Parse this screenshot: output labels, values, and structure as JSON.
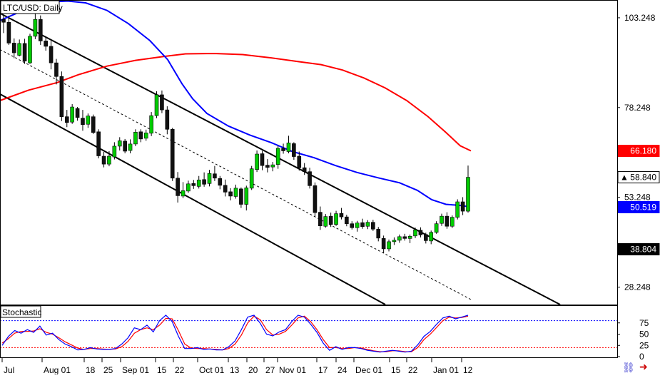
{
  "chart_data": {
    "type": "candlestick",
    "title": "LTC/USD: Daily",
    "price_axis": {
      "ylim": [
        23.4,
        108.2
      ],
      "tick_labels": [
        "103.248",
        "78.248",
        "53.248",
        "28.248"
      ],
      "tick_values": [
        103.248,
        78.248,
        53.248,
        28.248
      ]
    },
    "price_tags": [
      {
        "label": "66.180",
        "value": 66.18,
        "bg": "#ff0000",
        "fg": "#ffffff"
      },
      {
        "label": "58.840",
        "value": 58.84,
        "bg": "#ffffff",
        "fg": "#000000",
        "marker": "▲"
      },
      {
        "label": "50.519",
        "value": 50.519,
        "bg": "#0000ff",
        "fg": "#ffffff"
      },
      {
        "label": "38.804",
        "value": 38.804,
        "bg": "#000000",
        "fg": "#ffffff"
      }
    ],
    "date_labels": [
      "Jul",
      "Aug 01",
      "18",
      "25",
      "Sep 01",
      "15",
      "22",
      "Oct 01",
      "13",
      "20",
      "27",
      "Nov 01",
      "17",
      "24",
      "Dec 01",
      "15",
      "22",
      "Jan 01",
      "12"
    ],
    "ma_fast": {
      "color": "#0000ff",
      "points": [
        [
          0,
          102.5
        ],
        [
          20,
          104.2
        ],
        [
          45,
          106.4
        ],
        [
          75,
          107.7
        ],
        [
          95,
          107.9
        ],
        [
          120,
          107.4
        ],
        [
          150,
          105.3
        ],
        [
          180,
          101.6
        ],
        [
          210,
          96.9
        ],
        [
          235,
          91.6
        ],
        [
          255,
          84.9
        ],
        [
          270,
          80.7
        ],
        [
          290,
          76.6
        ],
        [
          320,
          73.1
        ],
        [
          350,
          70.6
        ],
        [
          380,
          68.5
        ],
        [
          410,
          66.0
        ],
        [
          440,
          64.3
        ],
        [
          470,
          62.1
        ],
        [
          500,
          60.2
        ],
        [
          530,
          58.7
        ],
        [
          560,
          57.3
        ],
        [
          585,
          55.2
        ],
        [
          605,
          52.6
        ],
        [
          625,
          51.3
        ],
        [
          645,
          51.0
        ],
        [
          658,
          50.6
        ]
      ]
    },
    "ma_slow": {
      "color": "#ff0000",
      "points": [
        [
          0,
          80.2
        ],
        [
          40,
          83.1
        ],
        [
          80,
          85.2
        ],
        [
          110,
          87.4
        ],
        [
          150,
          89.8
        ],
        [
          190,
          91.4
        ],
        [
          230,
          92.5
        ],
        [
          260,
          93.2
        ],
        [
          300,
          93.3
        ],
        [
          340,
          93.0
        ],
        [
          380,
          92.1
        ],
        [
          420,
          91.0
        ],
        [
          450,
          90.2
        ],
        [
          480,
          88.7
        ],
        [
          510,
          86.5
        ],
        [
          540,
          83.7
        ],
        [
          570,
          80.2
        ],
        [
          600,
          75.7
        ],
        [
          625,
          71.3
        ],
        [
          645,
          67.6
        ],
        [
          660,
          66.2
        ]
      ]
    },
    "channel_lines": [
      {
        "style": "solid",
        "p1": [
          0,
          104.5
        ],
        "p2": [
          785,
          23.4
        ]
      },
      {
        "style": "solid",
        "p1": [
          0,
          82.0
        ],
        "p2": [
          540,
          23.4
        ]
      },
      {
        "style": "dashed",
        "p1": [
          0,
          94.4
        ],
        "p2": [
          660,
          24.8
        ]
      }
    ],
    "candles": [
      [
        102.8,
        104.0,
        99.0,
        102.0
      ],
      [
        102.0,
        103.8,
        95.7,
        96.2
      ],
      [
        96.2,
        97.5,
        92.0,
        93.5
      ],
      [
        92.8,
        97.2,
        92.5,
        96.1
      ],
      [
        96.1,
        97.4,
        90.4,
        91.2
      ],
      [
        90.7,
        98.8,
        90.4,
        98.1
      ],
      [
        98.1,
        107.2,
        97.3,
        102.8
      ],
      [
        102.8,
        103.9,
        95.7,
        96.8
      ],
      [
        96.8,
        98.1,
        94.1,
        95.3
      ],
      [
        95.3,
        96.8,
        88.9,
        90.7
      ],
      [
        90.7,
        91.8,
        84.7,
        86.9
      ],
      [
        86.9,
        88.3,
        74.5,
        75.7
      ],
      [
        75.7,
        77.6,
        72.8,
        74.1
      ],
      [
        74.2,
        79.2,
        73.7,
        78.4
      ],
      [
        78.0,
        78.4,
        74.6,
        75.5
      ],
      [
        75.3,
        77.6,
        71.8,
        73.5
      ],
      [
        73.6,
        76.6,
        72.6,
        75.9
      ],
      [
        75.7,
        76.3,
        70.9,
        71.3
      ],
      [
        71.5,
        72.2,
        64.1,
        64.8
      ],
      [
        64.7,
        65.9,
        61.6,
        62.5
      ],
      [
        62.5,
        66.1,
        61.9,
        64.7
      ],
      [
        64.5,
        68.6,
        63.8,
        67.5
      ],
      [
        67.5,
        70.0,
        66.3,
        69.0
      ],
      [
        68.9,
        69.5,
        65.5,
        66.1
      ],
      [
        66.3,
        69.4,
        65.5,
        68.1
      ],
      [
        68.1,
        72.2,
        67.5,
        71.4
      ],
      [
        71.5,
        72.2,
        68.6,
        69.5
      ],
      [
        69.7,
        72.1,
        69.0,
        71.2
      ],
      [
        71.1,
        77.0,
        70.3,
        76.0
      ],
      [
        76.0,
        82.8,
        75.3,
        81.8
      ],
      [
        81.8,
        83.0,
        76.7,
        77.6
      ],
      [
        77.6,
        78.6,
        70.8,
        72.2
      ],
      [
        72.2,
        72.6,
        57.8,
        58.6
      ],
      [
        58.6,
        60.3,
        51.8,
        53.7
      ],
      [
        53.6,
        57.5,
        53.0,
        55.1
      ],
      [
        55.0,
        57.9,
        54.5,
        57.0
      ],
      [
        57.1,
        58.1,
        55.6,
        56.5
      ],
      [
        56.3,
        59.2,
        55.7,
        58.1
      ],
      [
        58.2,
        60.2,
        56.2,
        56.9
      ],
      [
        57.1,
        60.9,
        56.3,
        59.9
      ],
      [
        59.8,
        62.0,
        57.8,
        58.6
      ],
      [
        58.5,
        59.2,
        55.5,
        56.6
      ],
      [
        56.6,
        58.2,
        53.5,
        54.7
      ],
      [
        54.8,
        55.8,
        52.4,
        53.6
      ],
      [
        53.5,
        56.8,
        52.9,
        55.8
      ],
      [
        55.6,
        56.0,
        50.3,
        51.3
      ],
      [
        51.3,
        56.5,
        49.6,
        55.9
      ],
      [
        55.8,
        62.0,
        55.3,
        61.2
      ],
      [
        61.0,
        66.3,
        60.3,
        65.3
      ],
      [
        65.4,
        66.2,
        60.8,
        62.1
      ],
      [
        62.2,
        63.9,
        60.2,
        61.6
      ],
      [
        61.7,
        63.1,
        60.5,
        62.3
      ],
      [
        62.4,
        67.7,
        61.2,
        66.9
      ],
      [
        66.9,
        68.2,
        65.4,
        66.2
      ],
      [
        66.0,
        70.4,
        65.5,
        68.4
      ],
      [
        68.2,
        68.6,
        63.7,
        64.6
      ],
      [
        64.7,
        66.0,
        60.7,
        61.5
      ],
      [
        61.5,
        62.8,
        59.5,
        60.4
      ],
      [
        60.4,
        61.5,
        55.7,
        56.5
      ],
      [
        56.5,
        57.4,
        47.9,
        49.0
      ],
      [
        49.1,
        50.7,
        44.2,
        45.3
      ],
      [
        45.2,
        48.6,
        44.8,
        47.9
      ],
      [
        48.0,
        49.0,
        45.0,
        45.7
      ],
      [
        45.7,
        49.5,
        45.3,
        48.7
      ],
      [
        48.8,
        50.3,
        47.1,
        47.8
      ],
      [
        47.8,
        48.4,
        45.2,
        45.9
      ],
      [
        45.9,
        46.6,
        44.3,
        44.8
      ],
      [
        44.8,
        46.7,
        43.7,
        46.1
      ],
      [
        46.2,
        47.3,
        44.5,
        45.1
      ],
      [
        45.2,
        46.9,
        44.4,
        46.3
      ],
      [
        46.3,
        47.0,
        43.9,
        44.4
      ],
      [
        44.4,
        45.0,
        41.0,
        41.9
      ],
      [
        41.8,
        42.6,
        37.7,
        38.9
      ],
      [
        38.9,
        41.5,
        38.2,
        40.9
      ],
      [
        40.9,
        42.1,
        40.0,
        41.3
      ],
      [
        41.3,
        42.9,
        40.6,
        42.3
      ],
      [
        42.3,
        43.1,
        41.2,
        41.8
      ],
      [
        41.8,
        42.9,
        40.5,
        42.4
      ],
      [
        42.5,
        44.8,
        41.9,
        44.2
      ],
      [
        44.1,
        44.9,
        42.1,
        42.8
      ],
      [
        42.9,
        43.4,
        40.4,
        41.2
      ],
      [
        41.1,
        44.0,
        40.2,
        43.5
      ],
      [
        43.5,
        46.6,
        43.1,
        45.9
      ],
      [
        46.0,
        48.7,
        45.3,
        48.0
      ],
      [
        48.0,
        49.1,
        44.5,
        45.2
      ],
      [
        45.2,
        48.2,
        44.7,
        47.7
      ],
      [
        47.7,
        52.7,
        47.1,
        52.0
      ],
      [
        52.0,
        53.3,
        48.3,
        49.4
      ],
      [
        49.4,
        62.1,
        49.0,
        58.84
      ]
    ],
    "stochastic": {
      "label": "Stochastic",
      "ylim": [
        0,
        100
      ],
      "tick_labels": [
        "75",
        "50",
        "25",
        "0"
      ],
      "tick_values": [
        75,
        50,
        25,
        0
      ],
      "levels": [
        80,
        20
      ],
      "k_color": "#0000ff",
      "d_color": "#ff0000",
      "k": [
        25,
        45,
        58,
        52,
        60,
        54,
        68,
        48,
        52,
        38,
        28,
        22,
        15,
        16,
        20,
        17,
        16,
        16,
        18,
        28,
        42,
        64,
        60,
        70,
        55,
        80,
        92,
        78,
        45,
        18,
        18,
        20,
        16,
        17,
        15,
        15,
        22,
        35,
        60,
        88,
        92,
        74,
        50,
        46,
        55,
        60,
        78,
        92,
        88,
        72,
        54,
        30,
        14,
        22,
        16,
        20,
        20,
        18,
        14,
        12,
        10,
        12,
        14,
        12,
        10,
        12,
        26,
        45,
        56,
        72,
        86,
        90,
        84,
        88,
        92
      ],
      "d": [
        30,
        40,
        52,
        56,
        56,
        57,
        62,
        54,
        50,
        42,
        33,
        26,
        19,
        16,
        18,
        18,
        17,
        16,
        17,
        22,
        34,
        52,
        60,
        64,
        60,
        70,
        85,
        84,
        58,
        28,
        19,
        18,
        18,
        17,
        16,
        15,
        18,
        28,
        48,
        75,
        90,
        82,
        60,
        48,
        50,
        56,
        70,
        86,
        90,
        78,
        60,
        38,
        20,
        20,
        18,
        18,
        20,
        19,
        16,
        13,
        11,
        11,
        13,
        13,
        11,
        11,
        20,
        38,
        50,
        65,
        80,
        88,
        86,
        87,
        90
      ]
    }
  },
  "toolbar": {
    "icons": [
      "chain-link-icon",
      "arrow-right-icon"
    ]
  }
}
